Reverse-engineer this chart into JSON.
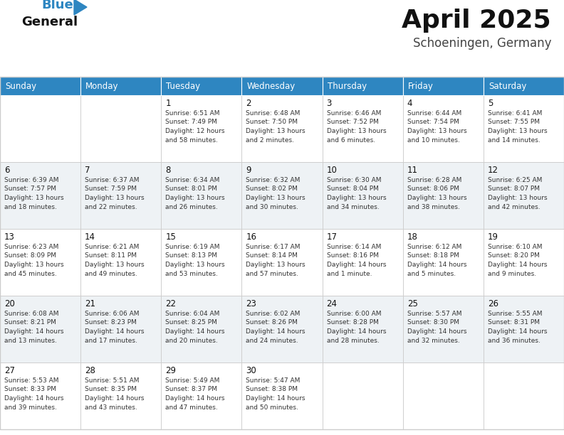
{
  "title": "April 2025",
  "subtitle": "Schoeningen, Germany",
  "header_bg": "#2E86C1",
  "header_fg": "#FFFFFF",
  "grid_color": "#CCCCCC",
  "text_color": "#333333",
  "day_names": [
    "Sunday",
    "Monday",
    "Tuesday",
    "Wednesday",
    "Thursday",
    "Friday",
    "Saturday"
  ],
  "days": [
    {
      "day": 1,
      "col": 2,
      "row": 0,
      "sunrise": "6:51 AM",
      "sunset": "7:49 PM",
      "daylight": "12 hours and 58 minutes."
    },
    {
      "day": 2,
      "col": 3,
      "row": 0,
      "sunrise": "6:48 AM",
      "sunset": "7:50 PM",
      "daylight": "13 hours and 2 minutes."
    },
    {
      "day": 3,
      "col": 4,
      "row": 0,
      "sunrise": "6:46 AM",
      "sunset": "7:52 PM",
      "daylight": "13 hours and 6 minutes."
    },
    {
      "day": 4,
      "col": 5,
      "row": 0,
      "sunrise": "6:44 AM",
      "sunset": "7:54 PM",
      "daylight": "13 hours and 10 minutes."
    },
    {
      "day": 5,
      "col": 6,
      "row": 0,
      "sunrise": "6:41 AM",
      "sunset": "7:55 PM",
      "daylight": "13 hours and 14 minutes."
    },
    {
      "day": 6,
      "col": 0,
      "row": 1,
      "sunrise": "6:39 AM",
      "sunset": "7:57 PM",
      "daylight": "13 hours and 18 minutes."
    },
    {
      "day": 7,
      "col": 1,
      "row": 1,
      "sunrise": "6:37 AM",
      "sunset": "7:59 PM",
      "daylight": "13 hours and 22 minutes."
    },
    {
      "day": 8,
      "col": 2,
      "row": 1,
      "sunrise": "6:34 AM",
      "sunset": "8:01 PM",
      "daylight": "13 hours and 26 minutes."
    },
    {
      "day": 9,
      "col": 3,
      "row": 1,
      "sunrise": "6:32 AM",
      "sunset": "8:02 PM",
      "daylight": "13 hours and 30 minutes."
    },
    {
      "day": 10,
      "col": 4,
      "row": 1,
      "sunrise": "6:30 AM",
      "sunset": "8:04 PM",
      "daylight": "13 hours and 34 minutes."
    },
    {
      "day": 11,
      "col": 5,
      "row": 1,
      "sunrise": "6:28 AM",
      "sunset": "8:06 PM",
      "daylight": "13 hours and 38 minutes."
    },
    {
      "day": 12,
      "col": 6,
      "row": 1,
      "sunrise": "6:25 AM",
      "sunset": "8:07 PM",
      "daylight": "13 hours and 42 minutes."
    },
    {
      "day": 13,
      "col": 0,
      "row": 2,
      "sunrise": "6:23 AM",
      "sunset": "8:09 PM",
      "daylight": "13 hours and 45 minutes."
    },
    {
      "day": 14,
      "col": 1,
      "row": 2,
      "sunrise": "6:21 AM",
      "sunset": "8:11 PM",
      "daylight": "13 hours and 49 minutes."
    },
    {
      "day": 15,
      "col": 2,
      "row": 2,
      "sunrise": "6:19 AM",
      "sunset": "8:13 PM",
      "daylight": "13 hours and 53 minutes."
    },
    {
      "day": 16,
      "col": 3,
      "row": 2,
      "sunrise": "6:17 AM",
      "sunset": "8:14 PM",
      "daylight": "13 hours and 57 minutes."
    },
    {
      "day": 17,
      "col": 4,
      "row": 2,
      "sunrise": "6:14 AM",
      "sunset": "8:16 PM",
      "daylight": "14 hours and 1 minute."
    },
    {
      "day": 18,
      "col": 5,
      "row": 2,
      "sunrise": "6:12 AM",
      "sunset": "8:18 PM",
      "daylight": "14 hours and 5 minutes."
    },
    {
      "day": 19,
      "col": 6,
      "row": 2,
      "sunrise": "6:10 AM",
      "sunset": "8:20 PM",
      "daylight": "14 hours and 9 minutes."
    },
    {
      "day": 20,
      "col": 0,
      "row": 3,
      "sunrise": "6:08 AM",
      "sunset": "8:21 PM",
      "daylight": "14 hours and 13 minutes."
    },
    {
      "day": 21,
      "col": 1,
      "row": 3,
      "sunrise": "6:06 AM",
      "sunset": "8:23 PM",
      "daylight": "14 hours and 17 minutes."
    },
    {
      "day": 22,
      "col": 2,
      "row": 3,
      "sunrise": "6:04 AM",
      "sunset": "8:25 PM",
      "daylight": "14 hours and 20 minutes."
    },
    {
      "day": 23,
      "col": 3,
      "row": 3,
      "sunrise": "6:02 AM",
      "sunset": "8:26 PM",
      "daylight": "14 hours and 24 minutes."
    },
    {
      "day": 24,
      "col": 4,
      "row": 3,
      "sunrise": "6:00 AM",
      "sunset": "8:28 PM",
      "daylight": "14 hours and 28 minutes."
    },
    {
      "day": 25,
      "col": 5,
      "row": 3,
      "sunrise": "5:57 AM",
      "sunset": "8:30 PM",
      "daylight": "14 hours and 32 minutes."
    },
    {
      "day": 26,
      "col": 6,
      "row": 3,
      "sunrise": "5:55 AM",
      "sunset": "8:31 PM",
      "daylight": "14 hours and 36 minutes."
    },
    {
      "day": 27,
      "col": 0,
      "row": 4,
      "sunrise": "5:53 AM",
      "sunset": "8:33 PM",
      "daylight": "14 hours and 39 minutes."
    },
    {
      "day": 28,
      "col": 1,
      "row": 4,
      "sunrise": "5:51 AM",
      "sunset": "8:35 PM",
      "daylight": "14 hours and 43 minutes."
    },
    {
      "day": 29,
      "col": 2,
      "row": 4,
      "sunrise": "5:49 AM",
      "sunset": "8:37 PM",
      "daylight": "14 hours and 47 minutes."
    },
    {
      "day": 30,
      "col": 3,
      "row": 4,
      "sunrise": "5:47 AM",
      "sunset": "8:38 PM",
      "daylight": "14 hours and 50 minutes."
    }
  ]
}
